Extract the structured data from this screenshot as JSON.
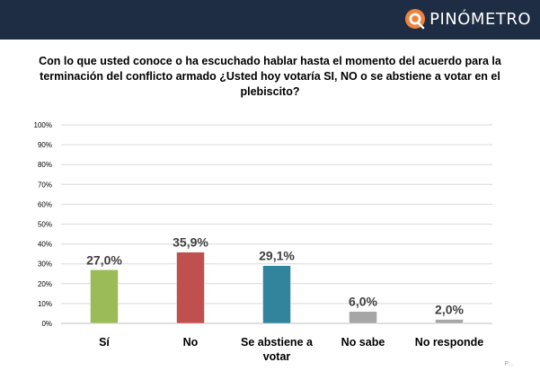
{
  "brand": {
    "name": "PINÓMETRO"
  },
  "question": "Con lo que usted conoce o ha escuchado hablar hasta el momento del acuerdo para la terminación del conflicto armado ¿Usted hoy votaría SI, NO o se abstiene a votar en el plebiscito?",
  "chart_data": {
    "type": "bar",
    "title": "",
    "categories": [
      "Sí",
      "No",
      "Se abstiene a votar",
      "No sabe",
      "No responde"
    ],
    "values": [
      27.0,
      35.9,
      29.1,
      6.0,
      2.0
    ],
    "data_labels": [
      "27,0%",
      "35,9%",
      "29,1%",
      "6,0%",
      "2,0%"
    ],
    "colors": [
      "#9bbb59",
      "#c0504d",
      "#31849b",
      "#a6a6a6",
      "#a6a6a6"
    ],
    "ylim": [
      0,
      100
    ],
    "yticks": [
      "0%",
      "10%",
      "20%",
      "30%",
      "40%",
      "50%",
      "60%",
      "70%",
      "80%",
      "90%",
      "100%"
    ],
    "grid": true,
    "legend": "none"
  },
  "footer": {
    "mark": "P..."
  }
}
